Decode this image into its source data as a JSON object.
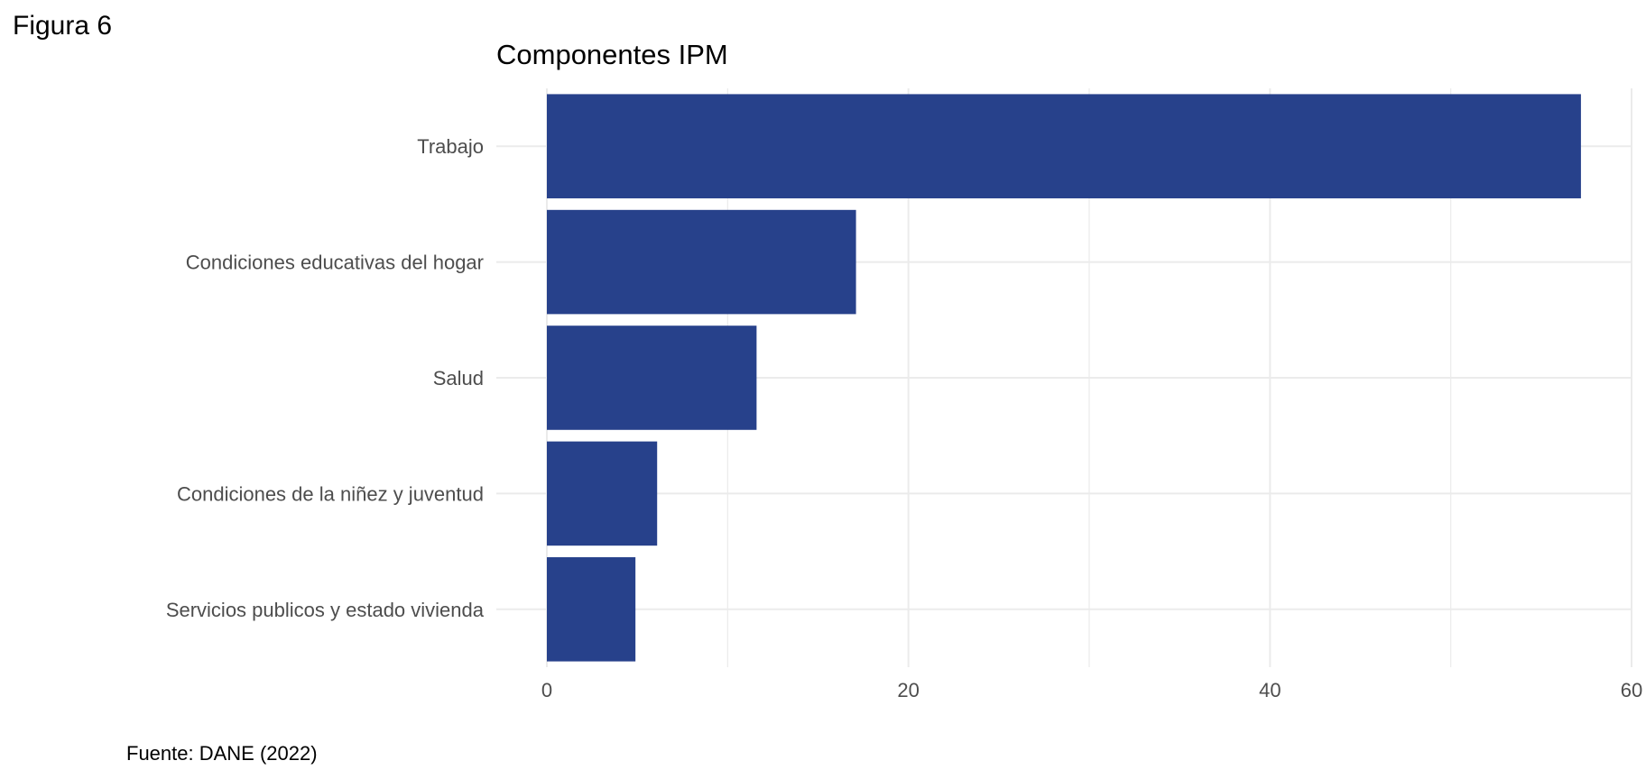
{
  "figure": {
    "label": "Figura 6",
    "source": "Fuente: DANE (2022)"
  },
  "chart_data": {
    "type": "bar",
    "orientation": "horizontal",
    "title": "Componentes IPM",
    "xlabel": "",
    "ylabel": "",
    "categories": [
      "Trabajo",
      "Condiciones educativas del hogar",
      "Salud",
      "Condiciones de la niñez y juventud",
      "Servicios publicos y estado vivienda"
    ],
    "values": [
      57.2,
      17.1,
      11.6,
      6.1,
      4.9
    ],
    "xlim": [
      0,
      60
    ],
    "xticks": [
      0,
      20,
      40,
      60
    ],
    "grid": true,
    "legend": "none",
    "bar_color": "#27418b",
    "grid_color": "#ebebeb"
  }
}
